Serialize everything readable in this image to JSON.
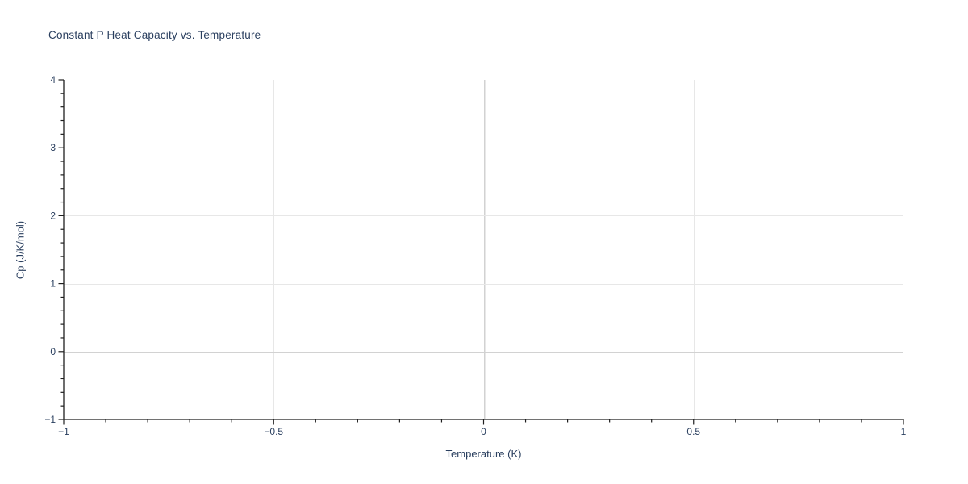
{
  "figure": {
    "background": "#ffffff"
  },
  "chart_data": {
    "type": "line",
    "title": "Constant P Heat Capacity vs. Temperature",
    "xlabel": "Temperature (K)",
    "ylabel": "Cp (J/K/mol)",
    "xlim": [
      -1,
      1
    ],
    "ylim": [
      -1,
      4
    ],
    "xticks": [
      -1,
      -0.5,
      0,
      0.5,
      1
    ],
    "xtick_labels": [
      "−1",
      "−0.5",
      "0",
      "0.5",
      "1"
    ],
    "yticks": [
      -1,
      0,
      1,
      2,
      3,
      4
    ],
    "ytick_labels": [
      "−1",
      "0",
      "1",
      "2",
      "3",
      "4"
    ],
    "x_minor_step": 0.1,
    "y_minor_step": 0.2,
    "grid": true,
    "zeroline_x": 0,
    "zeroline_y": 0,
    "legend": "none",
    "series": [],
    "colors": {
      "text": "#2a3f5f",
      "axis": "#1f1f1f",
      "grid": "#e7e7e7",
      "zeroline": "#d2d2d2",
      "background": "#ffffff"
    }
  }
}
